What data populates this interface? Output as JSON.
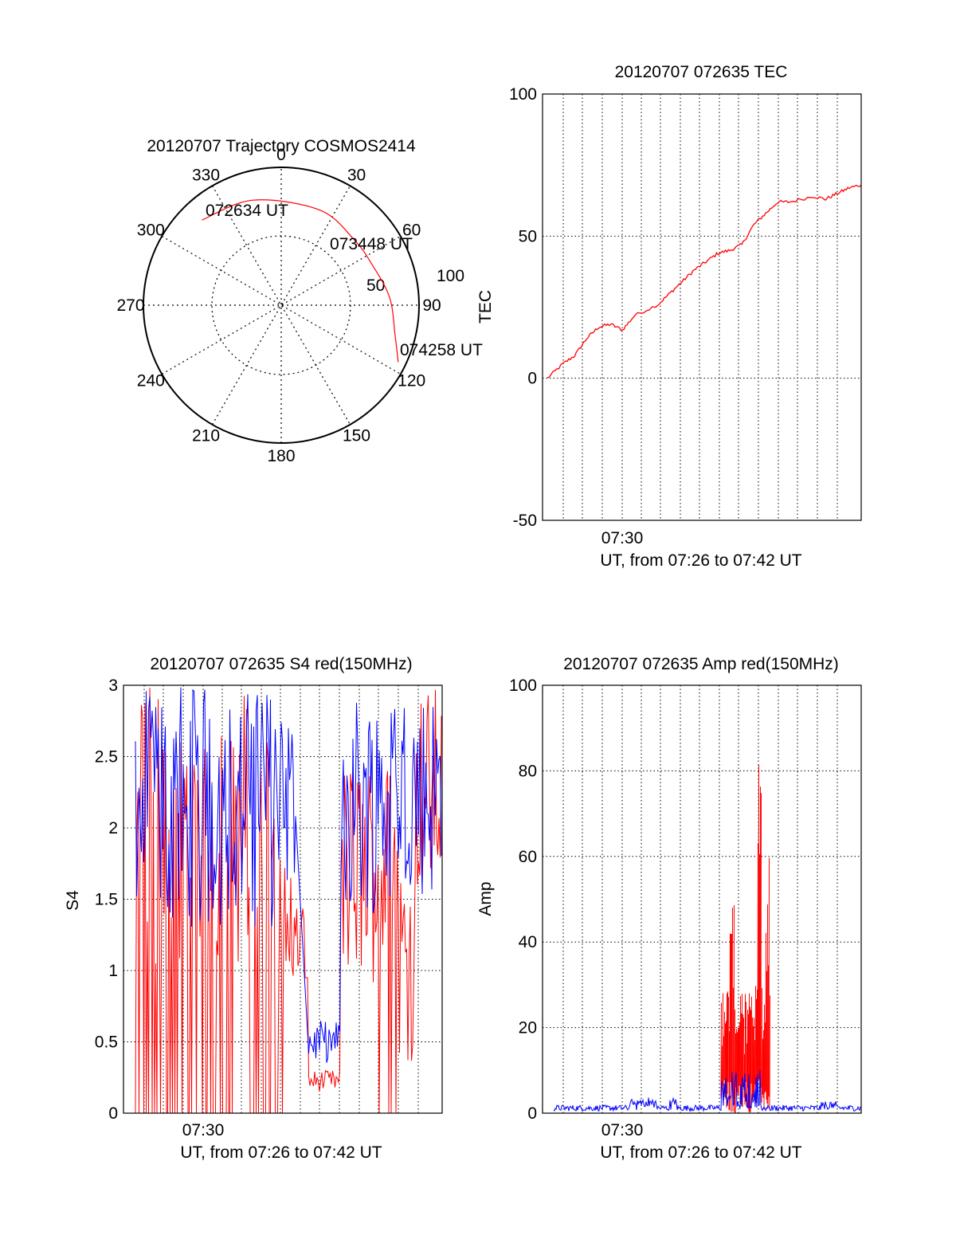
{
  "chart_data": [
    {
      "type": "polar",
      "title": "20120707 Trajectory COSMOS2414",
      "azimuth_labels": [
        "0",
        "30",
        "60",
        "90",
        "120",
        "150",
        "180",
        "210",
        "240",
        "270",
        "300",
        "330"
      ],
      "elevation_labels": [
        "50",
        "100"
      ],
      "elevation_rings": [
        0,
        50
      ],
      "trajectory": {
        "color": "#ff0000",
        "points": [
          {
            "az": 317,
            "el": 14,
            "time": "072634 UT"
          },
          {
            "az": 345,
            "el": 19
          },
          {
            "az": 22,
            "el": 23
          },
          {
            "az": 48,
            "el": 26,
            "time": "073448 UT"
          },
          {
            "az": 66,
            "el": 25
          },
          {
            "az": 86,
            "el": 19
          },
          {
            "az": 105,
            "el": 13
          },
          {
            "az": 116,
            "el": 5,
            "time": "074258 UT"
          }
        ]
      },
      "annotations": [
        "072634 UT",
        "073448 UT",
        "074258 UT"
      ]
    },
    {
      "type": "line",
      "title": "20120707 072635 TEC",
      "ylabel": "TEC",
      "xlabel": "UT, from 07:26 to 07:42 UT",
      "x_tick": "07:30",
      "ylim": [
        -50,
        100
      ],
      "yticks": [
        "-50",
        "0",
        "50",
        "100"
      ],
      "xlim_minutes": [
        7.433,
        7.7
      ],
      "grid": true,
      "series": [
        {
          "color": "#ff0000",
          "x": [
            7.437,
            7.45,
            7.46,
            7.47,
            7.48,
            7.49,
            7.5,
            7.51,
            7.53,
            7.54,
            7.55,
            7.56,
            7.57,
            7.58,
            7.59,
            7.6,
            7.61,
            7.62,
            7.63,
            7.64,
            7.66,
            7.67,
            7.68,
            7.69,
            7.7
          ],
          "y": [
            0,
            5,
            8,
            14,
            18,
            19,
            17,
            22,
            26,
            30,
            34,
            38,
            41,
            44,
            45,
            47,
            54,
            58,
            62,
            62,
            64,
            63,
            65,
            67,
            68
          ]
        }
      ]
    },
    {
      "type": "line",
      "title": "20120707 072635 S4 red(150MHz)",
      "ylabel": "S4",
      "xlabel": "UT, from 07:26 to 07:42 UT",
      "x_tick": "07:30",
      "ylim": [
        0,
        3
      ],
      "yticks": [
        "0",
        "0.5",
        "1",
        "1.5",
        "2",
        "2.5",
        "3"
      ],
      "grid": true,
      "series": [
        {
          "color": "#ff0000",
          "note": "red channel"
        },
        {
          "color": "#0000ff",
          "note": "blue channel"
        }
      ]
    },
    {
      "type": "line",
      "title": "20120707 072635 Amp red(150MHz)",
      "ylabel": "Amp",
      "xlabel": "UT, from 07:26 to 07:42 UT",
      "x_tick": "07:30",
      "ylim": [
        0,
        100
      ],
      "yticks": [
        "0",
        "20",
        "40",
        "60",
        "80",
        "100"
      ],
      "grid": true,
      "series": [
        {
          "color": "#ff0000"
        },
        {
          "color": "#0000ff"
        }
      ]
    }
  ]
}
